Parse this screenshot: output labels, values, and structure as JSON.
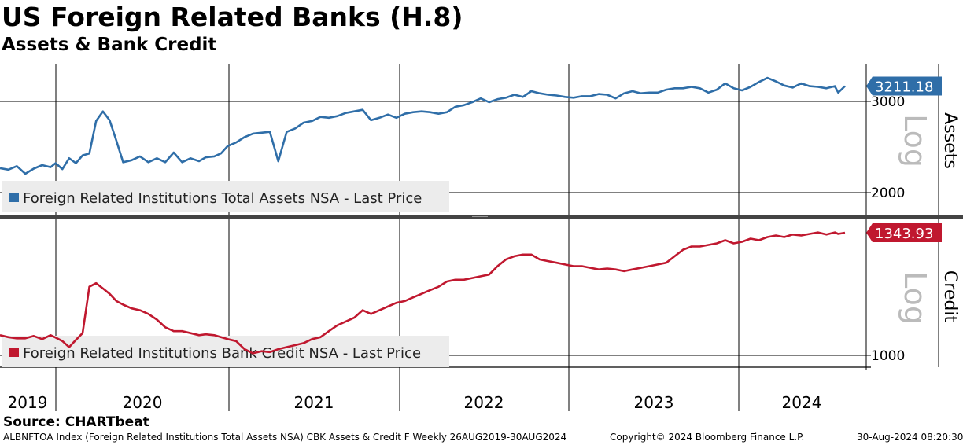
{
  "header": {
    "title": "US Foreign Related Banks (H.8)",
    "subtitle": "Assets & Bank Credit"
  },
  "footer": {
    "source": "Source: CHARTbeat",
    "description": "ALBNFTOA Index (Foreign Related Institutions Total Assets NSA) CBK Assets & Credit F  Weekly 26AUG2019-30AUG2024",
    "copyright": "Copyright© 2024 Bloomberg Finance L.P.",
    "timestamp": "30-Aug-2024 08:20:30"
  },
  "colors": {
    "assets": "#2f6ea8",
    "credit": "#c0182f",
    "legend_bg": "#ececec",
    "scale_label": "#bbbbbb"
  },
  "chart_data": [
    {
      "type": "line",
      "panel": "assets",
      "title": "Assets",
      "scale_label": "Log",
      "legend_label": "Foreign Related Institutions Total Assets NSA - Last Price",
      "last_value_label": "3211.18",
      "last_value": 3211.18,
      "yscale": "log",
      "ylim": [
        1850,
        3600
      ],
      "yticks": [
        2000,
        3000
      ],
      "series": [
        {
          "name": "Foreign Related Institutions Total Assets NSA - Last Price",
          "x": [
            2019.65,
            2019.7,
            2019.75,
            2019.8,
            2019.85,
            2019.9,
            2019.95,
            2019.98,
            2020.02,
            2020.06,
            2020.1,
            2020.14,
            2020.18,
            2020.22,
            2020.26,
            2020.3,
            2020.34,
            2020.38,
            2020.43,
            2020.48,
            2020.53,
            2020.58,
            2020.63,
            2020.68,
            2020.73,
            2020.78,
            2020.83,
            2020.87,
            2020.92,
            2020.96,
            2021.0,
            2021.05,
            2021.1,
            2021.15,
            2021.2,
            2021.25,
            2021.3,
            2021.35,
            2021.4,
            2021.45,
            2021.5,
            2021.55,
            2021.6,
            2021.65,
            2021.7,
            2021.75,
            2021.8,
            2021.85,
            2021.9,
            2021.95,
            2022.0,
            2022.05,
            2022.1,
            2022.15,
            2022.2,
            2022.25,
            2022.3,
            2022.35,
            2022.4,
            2022.45,
            2022.5,
            2022.55,
            2022.6,
            2022.65,
            2022.7,
            2022.75,
            2022.8,
            2022.85,
            2022.9,
            2022.95,
            2023.0,
            2023.05,
            2023.1,
            2023.15,
            2023.2,
            2023.25,
            2023.3,
            2023.35,
            2023.4,
            2023.45,
            2023.5,
            2023.55,
            2023.6,
            2023.65,
            2023.7,
            2023.75,
            2023.8,
            2023.85,
            2023.9,
            2023.95,
            2024.0,
            2024.05,
            2024.1,
            2024.15,
            2024.2,
            2024.25,
            2024.3,
            2024.35,
            2024.4,
            2024.45,
            2024.5,
            2024.55,
            2024.6,
            2024.62,
            2024.66
          ],
          "values": [
            2230,
            2215,
            2250,
            2175,
            2225,
            2260,
            2240,
            2280,
            2220,
            2330,
            2280,
            2360,
            2380,
            2750,
            2870,
            2760,
            2520,
            2290,
            2310,
            2350,
            2290,
            2330,
            2290,
            2390,
            2290,
            2330,
            2300,
            2340,
            2350,
            2380,
            2460,
            2500,
            2560,
            2600,
            2610,
            2620,
            2300,
            2620,
            2660,
            2730,
            2750,
            2800,
            2790,
            2810,
            2850,
            2870,
            2890,
            2760,
            2790,
            2830,
            2790,
            2840,
            2860,
            2870,
            2860,
            2840,
            2860,
            2930,
            2950,
            2990,
            3040,
            2990,
            3030,
            3050,
            3090,
            3060,
            3140,
            3110,
            3090,
            3080,
            3060,
            3050,
            3070,
            3070,
            3100,
            3090,
            3040,
            3110,
            3140,
            3110,
            3120,
            3120,
            3160,
            3180,
            3180,
            3200,
            3180,
            3120,
            3160,
            3250,
            3180,
            3150,
            3200,
            3270,
            3330,
            3280,
            3220,
            3190,
            3250,
            3210,
            3200,
            3180,
            3210,
            3120,
            3211.18
          ]
        }
      ]
    },
    {
      "type": "line",
      "panel": "credit",
      "title": "Credit",
      "scale_label": "Log",
      "legend_label": "Foreign Related Institutions Bank Credit NSA - Last Price",
      "last_value_label": "1343.93",
      "last_value": 1343.93,
      "yscale": "log",
      "ylim": [
        950,
        1370
      ],
      "yticks": [
        1000
      ],
      "xlabel_ticks": [
        "2019",
        "2020",
        "2021",
        "2022",
        "2023",
        "2024"
      ],
      "series": [
        {
          "name": "Foreign Related Institutions Bank Credit NSA - Last Price",
          "x": [
            2019.65,
            2019.7,
            2019.75,
            2019.8,
            2019.85,
            2019.9,
            2019.95,
            2019.98,
            2020.02,
            2020.06,
            2020.1,
            2020.14,
            2020.18,
            2020.22,
            2020.26,
            2020.3,
            2020.34,
            2020.38,
            2020.43,
            2020.48,
            2020.53,
            2020.58,
            2020.63,
            2020.68,
            2020.73,
            2020.78,
            2020.83,
            2020.87,
            2020.92,
            2020.96,
            2021.0,
            2021.05,
            2021.1,
            2021.15,
            2021.2,
            2021.25,
            2021.3,
            2021.35,
            2021.4,
            2021.45,
            2021.5,
            2021.55,
            2021.6,
            2021.65,
            2021.7,
            2021.75,
            2021.8,
            2021.85,
            2021.9,
            2021.95,
            2022.0,
            2022.05,
            2022.1,
            2022.15,
            2022.2,
            2022.25,
            2022.3,
            2022.35,
            2022.4,
            2022.45,
            2022.5,
            2022.55,
            2022.6,
            2022.65,
            2022.7,
            2022.75,
            2022.8,
            2022.85,
            2022.9,
            2022.95,
            2023.0,
            2023.05,
            2023.1,
            2023.15,
            2023.2,
            2023.25,
            2023.3,
            2023.35,
            2023.4,
            2023.45,
            2023.5,
            2023.55,
            2023.6,
            2023.65,
            2023.7,
            2023.75,
            2023.8,
            2023.85,
            2023.9,
            2023.95,
            2024.0,
            2024.05,
            2024.1,
            2024.15,
            2024.2,
            2024.25,
            2024.3,
            2024.35,
            2024.4,
            2024.45,
            2024.5,
            2024.55,
            2024.6,
            2024.62,
            2024.66
          ],
          "values": [
            1050,
            1045,
            1042,
            1042,
            1048,
            1040,
            1050,
            1044,
            1035,
            1020,
            1038,
            1055,
            1180,
            1190,
            1175,
            1160,
            1140,
            1130,
            1120,
            1115,
            1105,
            1090,
            1070,
            1060,
            1060,
            1055,
            1050,
            1052,
            1050,
            1045,
            1040,
            1035,
            1015,
            1005,
            1010,
            1008,
            1015,
            1020,
            1025,
            1030,
            1040,
            1045,
            1060,
            1075,
            1085,
            1095,
            1115,
            1105,
            1115,
            1125,
            1135,
            1140,
            1150,
            1160,
            1170,
            1180,
            1195,
            1200,
            1200,
            1205,
            1210,
            1215,
            1240,
            1260,
            1270,
            1275,
            1275,
            1260,
            1255,
            1250,
            1245,
            1240,
            1240,
            1235,
            1230,
            1233,
            1230,
            1225,
            1230,
            1235,
            1240,
            1245,
            1250,
            1270,
            1290,
            1300,
            1300,
            1305,
            1310,
            1320,
            1310,
            1315,
            1325,
            1320,
            1330,
            1335,
            1330,
            1338,
            1335,
            1340,
            1345,
            1338,
            1345,
            1340,
            1343.93
          ]
        }
      ]
    }
  ]
}
